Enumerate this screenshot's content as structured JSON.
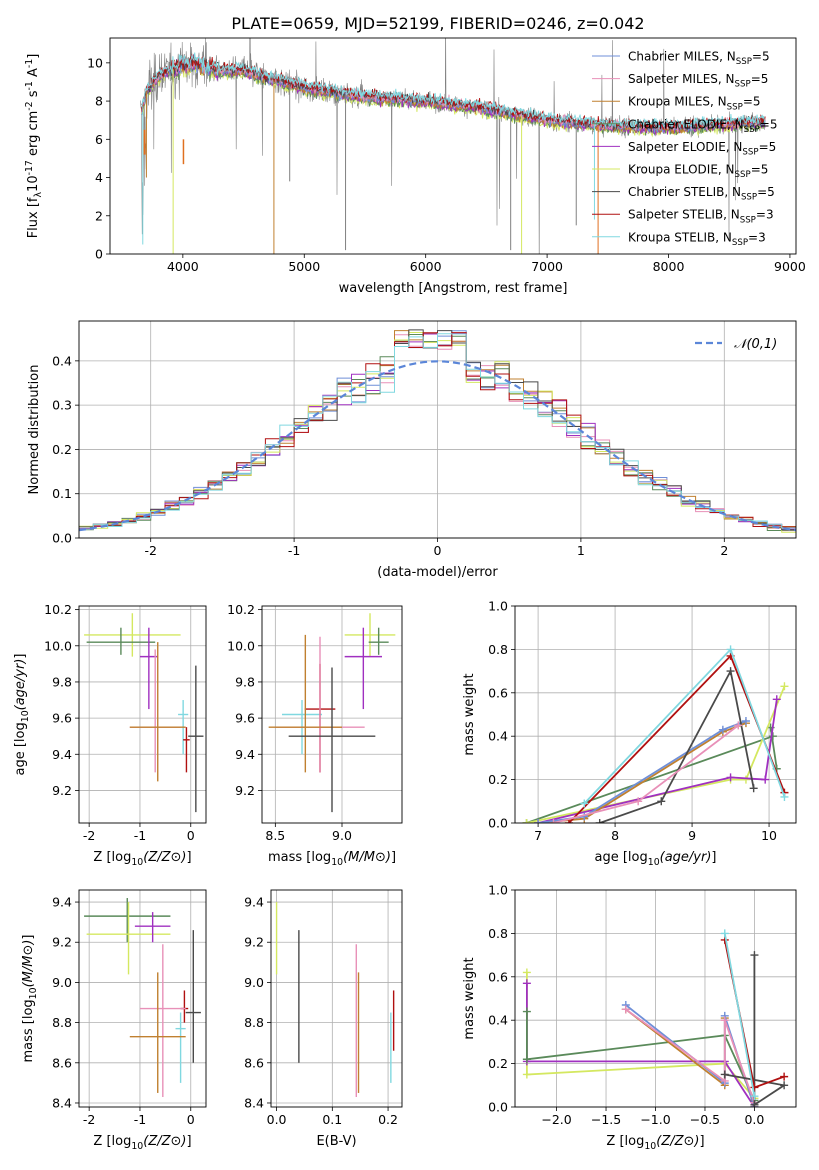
{
  "figure": {
    "title": "PLATE=0659, MJD=52199, FIBERID=0246, z=0.042"
  },
  "colors": {
    "Chabrier MILES": "#6f8fd8",
    "Salpeter MILES": "#e890b8",
    "Kroupa MILES": "#c08030",
    "Chabrier ELODIE": "#5a8a5a",
    "Salpeter ELODIE": "#a030c0",
    "Kroupa ELODIE": "#d4e860",
    "Chabrier STELIB": "#4a4a4a",
    "Salpeter STELIB": "#b01010",
    "Kroupa STELIB": "#80d8e0",
    "data": "#808080",
    "orange": "#e07020"
  },
  "chart_data": [
    {
      "id": "spectrum",
      "type": "line",
      "xlabel": "wavelength [Angstrom, rest frame]",
      "ylabel": "Flux [f_λ10^-17 erg cm^-2 s^-1 A^-1]",
      "xlim": [
        3400,
        9050
      ],
      "ylim": [
        0,
        11.3
      ],
      "xticks": [
        4000,
        5000,
        6000,
        7000,
        8000,
        9000
      ],
      "yticks": [
        0,
        2,
        4,
        6,
        8,
        10
      ],
      "legend_position": "upper-right",
      "series": [
        {
          "name": "Chabrier MILES, N_SSP=5"
        },
        {
          "name": "Salpeter MILES, N_SSP=5"
        },
        {
          "name": "Kroupa MILES, N_SSP=5"
        },
        {
          "name": "Chabrier ELODIE, N_SSP=5"
        },
        {
          "name": "Salpeter ELODIE, N_SSP=5"
        },
        {
          "name": "Kroupa ELODIE, N_SSP=5"
        },
        {
          "name": "Chabrier STELIB, N_SSP=5"
        },
        {
          "name": "Salpeter STELIB, N_SSP=3"
        },
        {
          "name": "Kroupa STELIB, N_SSP=3"
        }
      ],
      "continuum": {
        "x": [
          3650,
          3700,
          3800,
          3900,
          4000,
          4100,
          4200,
          4300,
          4500,
          4700,
          5000,
          5500,
          6000,
          6500,
          7000,
          7500,
          8000,
          8500,
          8800
        ],
        "y": [
          7.2,
          8.5,
          9.3,
          9.6,
          9.9,
          10.0,
          9.8,
          9.6,
          9.6,
          9.2,
          8.7,
          8.2,
          8.0,
          7.6,
          7.0,
          6.7,
          6.6,
          6.8,
          6.9
        ]
      }
    },
    {
      "id": "residuals",
      "type": "step",
      "xlabel": "(data-model)/error",
      "ylabel": "Normed distribution",
      "xlim": [
        -2.5,
        2.5
      ],
      "ylim": [
        0,
        0.49
      ],
      "xticks": [
        -2,
        -1,
        0,
        1,
        2
      ],
      "yticks": [
        0.0,
        0.1,
        0.2,
        0.3,
        0.4
      ],
      "grid": true,
      "legend": "𝒩(0,1)",
      "legend_position": "upper-right",
      "bin_width": 0.1
    },
    {
      "id": "age-vs-Z",
      "type": "errorbar",
      "xlabel": "Z [log10(Z/Z⊙)]",
      "ylabel": "age  [log10(age/yr)]",
      "xlim": [
        -2.2,
        0.3
      ],
      "ylim": [
        9.02,
        10.22
      ],
      "xticks": [
        -2,
        -1,
        0
      ],
      "yticks": [
        9.2,
        9.4,
        9.6,
        9.8,
        10.0,
        10.2
      ],
      "grid": true,
      "points": [
        {
          "series": "Kroupa ELODIE",
          "x": -2.1,
          "x2": -0.2,
          "y": 10.06,
          "y1": 9.94,
          "y2": 10.18
        },
        {
          "series": "Chabrier ELODIE",
          "x": -2.05,
          "x2": -0.7,
          "y": 10.02,
          "y1": 9.95,
          "y2": 10.1
        },
        {
          "series": "Salpeter ELODIE",
          "x": -1.0,
          "x2": -0.65,
          "y": 9.94,
          "y1": 9.65,
          "y2": 10.1
        },
        {
          "series": "Kroupa STELIB",
          "x": -0.25,
          "x2": -0.05,
          "y": 9.62,
          "y1": 9.4,
          "y2": 9.7
        },
        {
          "series": "Salpeter MILES",
          "x": -1.2,
          "x2": -0.2,
          "y": 9.55,
          "y1": 9.3,
          "y2": 9.98
        },
        {
          "series": "Kroupa MILES",
          "x": -1.2,
          "x2": -0.1,
          "y": 9.55,
          "y1": 9.25,
          "y2": 10.02
        },
        {
          "series": "Salpeter STELIB",
          "x": -0.15,
          "x2": -0.02,
          "y": 9.48,
          "y1": 9.3,
          "y2": 9.55
        },
        {
          "series": "Chabrier STELIB",
          "x": -0.05,
          "x2": 0.25,
          "y": 9.5,
          "y1": 9.08,
          "y2": 9.89
        }
      ]
    },
    {
      "id": "age-vs-mass",
      "type": "errorbar",
      "xlabel": "mass [log10(M/M⊙)]",
      "ylabel": "",
      "xlim": [
        8.4,
        9.45
      ],
      "ylim": [
        9.02,
        10.22
      ],
      "xticks": [
        8.5,
        9.0
      ],
      "yticks": [
        9.2,
        9.4,
        9.6,
        9.8,
        10.0,
        10.2
      ],
      "grid": true,
      "points": [
        {
          "series": "Kroupa ELODIE",
          "x": 9.02,
          "x2": 9.4,
          "y": 10.06,
          "y1": 9.94,
          "y2": 10.18
        },
        {
          "series": "Chabrier ELODIE",
          "x": 9.2,
          "x2": 9.35,
          "y": 10.02,
          "y1": 9.95,
          "y2": 10.1
        },
        {
          "series": "Salpeter ELODIE",
          "x": 9.02,
          "x2": 9.3,
          "y": 9.94,
          "y1": 9.65,
          "y2": 10.1
        },
        {
          "series": "Kroupa STELIB",
          "x": 8.55,
          "x2": 8.85,
          "y": 9.62,
          "y1": 9.4,
          "y2": 9.7
        },
        {
          "series": "Salpeter STELIB",
          "x": 8.72,
          "x2": 8.95,
          "y": 9.65,
          "y1": 9.3,
          "y2": 9.9
        },
        {
          "series": "Salpeter MILES",
          "x": 8.5,
          "x2": 9.17,
          "y": 9.55,
          "y1": 9.3,
          "y2": 10.05
        },
        {
          "series": "Kroupa MILES",
          "x": 8.45,
          "x2": 9.0,
          "y": 9.55,
          "y1": 9.3,
          "y2": 10.06
        },
        {
          "series": "Chabrier STELIB",
          "x": 8.6,
          "x2": 9.25,
          "y": 9.5,
          "y1": 9.08,
          "y2": 9.88
        }
      ]
    },
    {
      "id": "massweight-vs-age",
      "type": "line",
      "xlabel": "age  [log10(age/yr)]",
      "ylabel": "mass weight",
      "xlim": [
        6.7,
        10.35
      ],
      "ylim": [
        0,
        1.0
      ],
      "xticks": [
        7,
        8,
        9,
        10
      ],
      "yticks": [
        0.0,
        0.2,
        0.4,
        0.6,
        0.8,
        1.0
      ],
      "grid": true,
      "series": [
        {
          "key": "Chabrier ELODIE",
          "x": [
            6.85,
            10.05,
            10.02,
            10.1
          ],
          "y": [
            0.0,
            0.4,
            0.44,
            0.25
          ]
        },
        {
          "key": "Kroupa ELODIE",
          "x": [
            6.85,
            9.5,
            9.7,
            10.2
          ],
          "y": [
            0.0,
            0.2,
            0.2,
            0.63
          ]
        },
        {
          "key": "Salpeter ELODIE",
          "x": [
            7.0,
            9.5,
            9.95,
            10.1
          ],
          "y": [
            0.0,
            0.21,
            0.2,
            0.57
          ]
        },
        {
          "key": "Kroupa MILES",
          "x": [
            7.0,
            7.6,
            9.4,
            9.7
          ],
          "y": [
            0.0,
            0.02,
            0.42,
            0.46
          ]
        },
        {
          "key": "Chabrier MILES",
          "x": [
            7.0,
            7.6,
            9.4,
            9.7
          ],
          "y": [
            0.0,
            0.03,
            0.43,
            0.47
          ]
        },
        {
          "key": "Chabrier STELIB",
          "x": [
            7.8,
            8.6,
            9.5,
            9.8
          ],
          "y": [
            0.0,
            0.1,
            0.7,
            0.16
          ]
        },
        {
          "key": "Salpeter STELIB",
          "x": [
            7.4,
            9.5,
            10.2
          ],
          "y": [
            0.0,
            0.77,
            0.14
          ]
        },
        {
          "key": "Kroupa STELIB",
          "x": [
            7.6,
            9.5,
            10.2
          ],
          "y": [
            0.09,
            0.8,
            0.12
          ]
        },
        {
          "key": "Salpeter MILES",
          "x": [
            7.2,
            8.3,
            9.6
          ],
          "y": [
            0.0,
            0.1,
            0.45
          ]
        }
      ]
    },
    {
      "id": "mass-vs-Z",
      "type": "errorbar",
      "xlabel": "Z [log10(Z/Z⊙)]",
      "ylabel": "mass [log10(M/M⊙)]",
      "xlim": [
        -2.2,
        0.3
      ],
      "ylim": [
        8.38,
        9.46
      ],
      "xticks": [
        -2,
        -1,
        0
      ],
      "yticks": [
        8.4,
        8.6,
        8.8,
        9.0,
        9.2,
        9.4
      ],
      "grid": true,
      "points": [
        {
          "series": "Chabrier ELODIE",
          "x": -2.1,
          "x2": -0.4,
          "y": 9.33,
          "y1": 9.2,
          "y2": 9.42
        },
        {
          "series": "Kroupa ELODIE",
          "x": -2.05,
          "x2": -0.4,
          "y": 9.24,
          "y1": 9.04,
          "y2": 9.4
        },
        {
          "series": "Salpeter ELODIE",
          "x": -1.1,
          "x2": -0.4,
          "y": 9.28,
          "y1": 9.2,
          "y2": 9.35
        },
        {
          "series": "Chabrier STELIB",
          "x": -0.1,
          "x2": 0.2,
          "y": 8.85,
          "y1": 8.6,
          "y2": 9.26
        },
        {
          "series": "Salpeter STELIB",
          "x": -0.2,
          "x2": -0.05,
          "y": 8.87,
          "y1": 8.8,
          "y2": 8.96
        },
        {
          "series": "Salpeter MILES",
          "x": -1.0,
          "x2": -0.1,
          "y": 8.87,
          "y1": 8.43,
          "y2": 9.19
        },
        {
          "series": "Kroupa STELIB",
          "x": -0.3,
          "x2": -0.1,
          "y": 8.77,
          "y1": 8.5,
          "y2": 8.85
        },
        {
          "series": "Kroupa MILES",
          "x": -1.2,
          "x2": -0.1,
          "y": 8.73,
          "y1": 8.45,
          "y2": 9.05
        }
      ]
    },
    {
      "id": "mass-vs-EBV",
      "type": "errorbar",
      "xlabel": "E(B-V)",
      "ylabel": "",
      "xlim": [
        -0.01,
        0.225
      ],
      "ylim": [
        8.38,
        9.46
      ],
      "xticks": [
        0.0,
        0.1,
        0.2
      ],
      "yticks": [
        8.4,
        8.6,
        8.8,
        9.0,
        9.2,
        9.4
      ],
      "grid": true,
      "points": [
        {
          "series": "Kroupa ELODIE",
          "x": 0.0,
          "y1": 9.04,
          "y2": 9.4
        },
        {
          "series": "Chabrier STELIB",
          "x": 0.04,
          "y1": 8.6,
          "y2": 9.26
        },
        {
          "series": "Salpeter MILES",
          "x": 0.143,
          "y1": 8.43,
          "y2": 9.19
        },
        {
          "series": "Kroupa MILES",
          "x": 0.147,
          "y1": 8.45,
          "y2": 9.05
        },
        {
          "series": "Salpeter STELIB",
          "x": 0.21,
          "y1": 8.66,
          "y2": 8.96
        },
        {
          "series": "Kroupa STELIB",
          "x": 0.205,
          "y1": 8.5,
          "y2": 8.85
        }
      ]
    },
    {
      "id": "massweight-vs-Z",
      "type": "line",
      "xlabel": "Z [log10(Z/Z⊙)]",
      "ylabel": "mass weight",
      "xlim": [
        -2.42,
        0.42
      ],
      "ylim": [
        0,
        1.0
      ],
      "xticks": [
        -2.0,
        -1.5,
        -1.0,
        -0.5,
        0.0
      ],
      "yticks": [
        0.0,
        0.2,
        0.4,
        0.6,
        0.8,
        1.0
      ],
      "grid": true,
      "series": [
        {
          "key": "Kroupa ELODIE",
          "x": [
            -2.3,
            -2.3,
            -0.3,
            0.0
          ],
          "y": [
            0.62,
            0.15,
            0.2,
            0.04
          ]
        },
        {
          "key": "Salpeter ELODIE",
          "x": [
            -2.3,
            -2.3,
            -0.3,
            0.0
          ],
          "y": [
            0.57,
            0.21,
            0.21,
            0.0
          ]
        },
        {
          "key": "Chabrier ELODIE",
          "x": [
            -2.3,
            -2.3,
            -0.3,
            0.0
          ],
          "y": [
            0.44,
            0.22,
            0.33,
            0.03
          ]
        },
        {
          "key": "Kroupa MILES",
          "x": [
            -1.3,
            -0.3,
            -0.3,
            0.0
          ],
          "y": [
            0.45,
            0.1,
            0.41,
            0.0
          ]
        },
        {
          "key": "Chabrier MILES",
          "x": [
            -1.3,
            -0.3,
            -0.3,
            0.0
          ],
          "y": [
            0.47,
            0.11,
            0.42,
            0.0
          ]
        },
        {
          "key": "Salpeter MILES",
          "x": [
            -1.3,
            -0.3,
            -0.3,
            0.0
          ],
          "y": [
            0.45,
            0.12,
            0.4,
            0.02
          ]
        },
        {
          "key": "Chabrier STELIB",
          "x": [
            0.0,
            0.0,
            0.3,
            -0.3
          ],
          "y": [
            0.7,
            0.01,
            0.1,
            0.15
          ]
        },
        {
          "key": "Salpeter STELIB",
          "x": [
            -0.3,
            0.0,
            0.3
          ],
          "y": [
            0.77,
            0.09,
            0.14
          ]
        },
        {
          "key": "Kroupa STELIB",
          "x": [
            -0.3,
            0.0
          ],
          "y": [
            0.8,
            0.05
          ]
        }
      ]
    }
  ]
}
